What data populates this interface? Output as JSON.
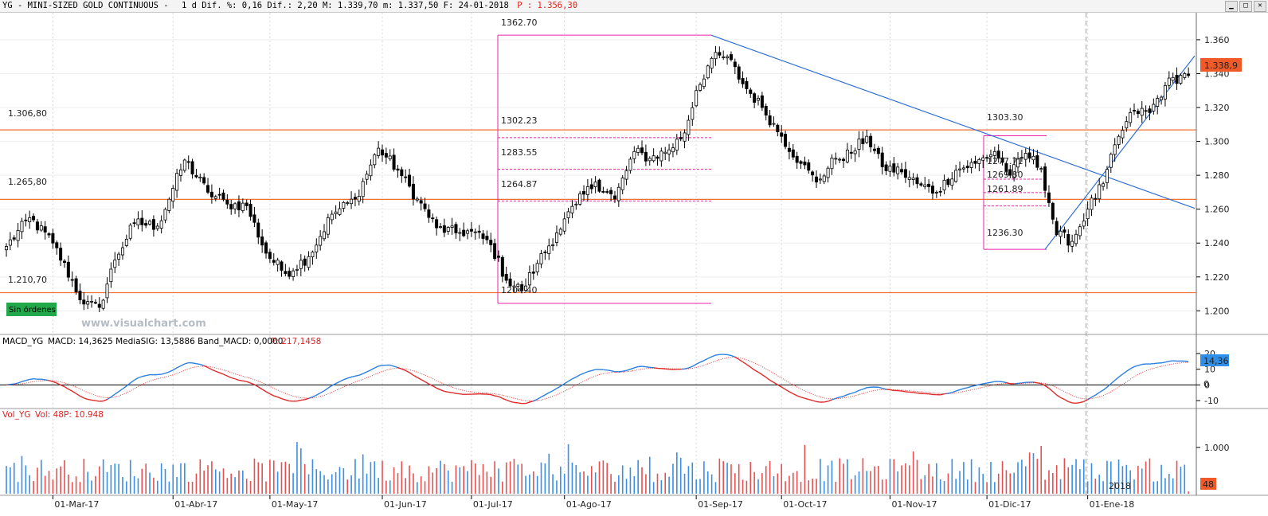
{
  "header": {
    "title_text": "YG - MINI-SIZED GOLD CONTINUOUS -",
    "stats_text": "1 d Dif. %: 0,16 Dif.: 2,20 M: 1.339,70 m: 1.337,50 F: 24-01-2018",
    "extra_text": "P : 1.356,30"
  },
  "main": {
    "last_price_badge": "1.338,9",
    "orders_badge": "Sin órdenes",
    "watermark": "www.visualchart.com",
    "levels": [
      {
        "label": "1.306,80",
        "value": 1306.8
      },
      {
        "label": "1.265,80",
        "value": 1265.8
      },
      {
        "label": "1.210,70",
        "value": 1210.7
      }
    ],
    "fib_box1": {
      "top_label": "1362.70",
      "bottom_label": "1204.40",
      "fib_labels": [
        "1302.23",
        "1283.55",
        "1264.87"
      ],
      "fib_values": [
        1302.23,
        1283.55,
        1264.87
      ]
    },
    "fib_box2": {
      "top_label": "1303.30",
      "bottom_label": "1236.30",
      "fib_labels": [
        "1277.71",
        "1269.80",
        "1261.89"
      ],
      "fib_values": [
        1277.71,
        1269.8,
        1261.89
      ]
    }
  },
  "macd": {
    "title": "MACD_YG",
    "values_text": "MACD: 14,3625 MediaSIG: 13,5886 Band_MACD: 0,0000",
    "p_text": "P: 217,1458",
    "badge_value": "14,36",
    "zero_badge": "0"
  },
  "volume": {
    "title": "Vol_YG",
    "values_text": "Vol: 48",
    "p_text": "P: 10.948",
    "badge_value": "48",
    "year_label": "2018"
  },
  "colors": {
    "bull": "#ffffff",
    "bear": "#000000",
    "level_line": "#f07030",
    "fib": "#ee22aa",
    "trend": "#2f6fd6",
    "macd_line": "#2a7ee0",
    "signal_line": "#e02a2a",
    "vol_up": "#3a8ee6",
    "vol_down": "#e65050",
    "price_badge": "#f05a28",
    "macd_badge": "#2f8fe8",
    "orders_badge": "#22a84a"
  },
  "chart_data": [
    {
      "type": "candlestick",
      "title": "",
      "ylim": [
        1187,
        1375
      ],
      "y_ticks": [
        "1.200",
        "1.220",
        "1.240",
        "1.260",
        "1.280",
        "1.300",
        "1.320",
        "1.340",
        "1.360"
      ],
      "y_tick_values": [
        1200,
        1220,
        1240,
        1260,
        1280,
        1300,
        1320,
        1340,
        1360
      ],
      "x_labels": [
        "01-Mar-17",
        "01-Abr-17",
        "01-May-17",
        "01-Jun-17",
        "01-Jul-17",
        "01-Ago-17",
        "01-Sep-17",
        "01-Oct-17",
        "01-Nov-17",
        "01-Dic-17",
        "01-Ene-18"
      ],
      "anchor_closes": [
        [
          0,
          1238
        ],
        [
          6,
          1255
        ],
        [
          12,
          1240
        ],
        [
          20,
          1204
        ],
        [
          24,
          1202
        ],
        [
          28,
          1230
        ],
        [
          33,
          1252
        ],
        [
          39,
          1250
        ],
        [
          46,
          1289
        ],
        [
          52,
          1270
        ],
        [
          57,
          1263
        ],
        [
          62,
          1262
        ],
        [
          67,
          1234
        ],
        [
          72,
          1222
        ],
        [
          78,
          1232
        ],
        [
          84,
          1257
        ],
        [
          90,
          1266
        ],
        [
          96,
          1296
        ],
        [
          101,
          1283
        ],
        [
          106,
          1266
        ],
        [
          111,
          1249
        ],
        [
          116,
          1246
        ],
        [
          120,
          1247
        ],
        [
          125,
          1239
        ],
        [
          129,
          1218
        ],
        [
          133,
          1212
        ],
        [
          137,
          1228
        ],
        [
          142,
          1246
        ],
        [
          147,
          1263
        ],
        [
          152,
          1276
        ],
        [
          157,
          1266
        ],
        [
          162,
          1294
        ],
        [
          166,
          1290
        ],
        [
          171,
          1295
        ],
        [
          175,
          1305
        ],
        [
          178,
          1330
        ],
        [
          182,
          1349
        ],
        [
          186,
          1350
        ],
        [
          190,
          1334
        ],
        [
          195,
          1320
        ],
        [
          200,
          1303
        ],
        [
          205,
          1287
        ],
        [
          209,
          1276
        ],
        [
          214,
          1290
        ],
        [
          218,
          1293
        ],
        [
          222,
          1303
        ],
        [
          226,
          1285
        ],
        [
          231,
          1282
        ],
        [
          235,
          1275
        ],
        [
          240,
          1270
        ],
        [
          245,
          1283
        ],
        [
          250,
          1287
        ],
        [
          255,
          1294
        ],
        [
          259,
          1280
        ],
        [
          263,
          1293
        ],
        [
          267,
          1284
        ],
        [
          271,
          1245
        ],
        [
          275,
          1241
        ],
        [
          279,
          1260
        ],
        [
          283,
          1275
        ],
        [
          287,
          1303
        ],
        [
          291,
          1318
        ],
        [
          295,
          1317
        ],
        [
          299,
          1333
        ],
        [
          303,
          1339
        ],
        [
          305,
          1338.9
        ]
      ]
    },
    {
      "type": "line",
      "title": "MACD_YG",
      "ylim": [
        -14,
        24
      ],
      "y_ticks": [
        "20",
        "10",
        "0",
        "-10"
      ],
      "y_tick_values": [
        20,
        10,
        0,
        -10
      ],
      "series": [
        {
          "name": "MACD",
          "last": 14.3625
        },
        {
          "name": "MediaSIG",
          "last": 13.5886
        }
      ]
    },
    {
      "type": "bar",
      "title": "Vol_YG",
      "ylim": [
        0,
        1600
      ],
      "y_ticks": [
        "1.000"
      ],
      "y_tick_values": [
        1000
      ],
      "last_value": 48
    }
  ]
}
